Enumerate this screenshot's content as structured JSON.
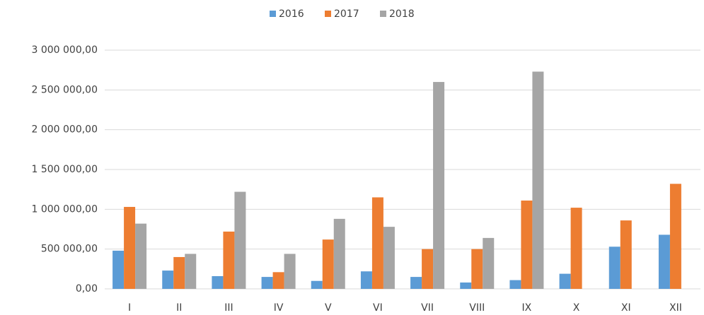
{
  "chart_data": {
    "type": "bar",
    "categories": [
      "I",
      "II",
      "III",
      "IV",
      "V",
      "VI",
      "VII",
      "VIII",
      "IX",
      "X",
      "XI",
      "XII"
    ],
    "series": [
      {
        "name": "2016",
        "color": "#5b9bd5",
        "values": [
          480000,
          230000,
          160000,
          150000,
          100000,
          220000,
          150000,
          80000,
          110000,
          190000,
          530000,
          680000
        ]
      },
      {
        "name": "2017",
        "color": "#ed7d31",
        "values": [
          1030000,
          400000,
          720000,
          210000,
          620000,
          1150000,
          500000,
          500000,
          1110000,
          1020000,
          860000,
          1320000
        ]
      },
      {
        "name": "2018",
        "color": "#a5a5a5",
        "values": [
          820000,
          440000,
          1220000,
          440000,
          880000,
          780000,
          2600000,
          640000,
          2730000,
          null,
          null,
          null
        ]
      }
    ],
    "ylim": [
      0,
      3000000
    ],
    "yticks": [
      {
        "value": 0,
        "label": "0,00"
      },
      {
        "value": 500000,
        "label": "500 000,00"
      },
      {
        "value": 1000000,
        "label": "1 000 000,00"
      },
      {
        "value": 1500000,
        "label": "1 500 000,00"
      },
      {
        "value": 2000000,
        "label": "2 000 000,00"
      },
      {
        "value": 2500000,
        "label": "2 500 000,00"
      },
      {
        "value": 3000000,
        "label": "3 000 000,00"
      }
    ],
    "grid": true,
    "legend": "top"
  }
}
